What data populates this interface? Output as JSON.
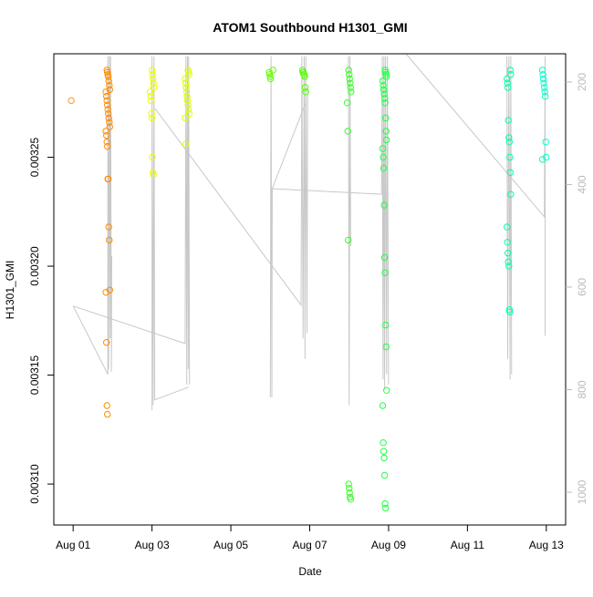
{
  "chart_data": {
    "type": "scatter",
    "title": "ATOM1 Southbound H1301_GMI",
    "xlabel": "Date",
    "ylabel": "H1301_GMI",
    "xlim_days_from_aug01": [
      -0.49,
      12.49
    ],
    "ylim": [
      0.0030812,
      0.0032975
    ],
    "y2lim_inverted": [
      145,
      1064
    ],
    "x_ticks": [
      {
        "day": 0,
        "label": "Aug 01"
      },
      {
        "day": 2,
        "label": "Aug 03"
      },
      {
        "day": 4,
        "label": "Aug 05"
      },
      {
        "day": 6,
        "label": "Aug 07"
      },
      {
        "day": 8,
        "label": "Aug 09"
      },
      {
        "day": 10,
        "label": "Aug 11"
      },
      {
        "day": 12,
        "label": "Aug 13"
      }
    ],
    "y_ticks": [
      {
        "v": 0.0031,
        "label": "0.00310"
      },
      {
        "v": 0.00315,
        "label": "0.00315"
      },
      {
        "v": 0.0032,
        "label": "0.00320"
      },
      {
        "v": 0.00325,
        "label": "0.00325"
      }
    ],
    "y2_ticks": [
      {
        "v": 200,
        "label": "200"
      },
      {
        "v": 400,
        "label": "400"
      },
      {
        "v": 600,
        "label": "600"
      },
      {
        "v": 800,
        "label": "800"
      },
      {
        "v": 1000,
        "label": "1000"
      }
    ],
    "groups": [
      {
        "day": 0.0,
        "color": "#FF9A20",
        "values": [
          0.003276
        ]
      },
      {
        "day": 0.88,
        "color": "#FF8C00",
        "values": [
          0.00329,
          0.003289,
          0.003288,
          0.003287,
          0.003285,
          0.003283,
          0.003281,
          0.00328,
          0.003278,
          0.003276,
          0.003274,
          0.003272,
          0.00327,
          0.003268,
          0.003266,
          0.003264,
          0.003262,
          0.00326,
          0.003257,
          0.003255,
          0.00324,
          0.00324,
          0.003218,
          0.003212,
          0.003189,
          0.003188,
          0.003165,
          0.003136,
          0.003132
        ]
      },
      {
        "day": 2.0,
        "color": "#E8FF00",
        "values": [
          0.00329,
          0.003288,
          0.003286,
          0.003284,
          0.003282,
          0.00328,
          0.003278,
          0.003276,
          0.00327,
          0.003268,
          0.00325,
          0.003243,
          0.003242
        ]
      },
      {
        "day": 2.89,
        "color": "#DDFF00",
        "values": [
          0.00329,
          0.003289,
          0.003288,
          0.003286,
          0.003284,
          0.003282,
          0.00328,
          0.003278,
          0.003276,
          0.003274,
          0.003272,
          0.00327,
          0.003268,
          0.003256
        ]
      },
      {
        "day": 5.02,
        "color": "#66FF00",
        "values": [
          0.00329,
          0.003289,
          0.003288,
          0.003287,
          0.003286
        ]
      },
      {
        "day": 5.85,
        "color": "#55FF00",
        "values": [
          0.00329,
          0.003289,
          0.003289,
          0.003288,
          0.003288,
          0.003287,
          0.003282,
          0.00328
        ]
      },
      {
        "day": 7.0,
        "color": "#33FF22",
        "values": [
          0.00329,
          0.003288,
          0.003286,
          0.003284,
          0.003282,
          0.00328,
          0.003275,
          0.003262,
          0.003212,
          0.0031,
          0.003098,
          0.003096,
          0.003094,
          0.003093
        ]
      },
      {
        "day": 7.9,
        "color": "#22FF44",
        "values": [
          0.00329,
          0.003289,
          0.003288,
          0.003287,
          0.003285,
          0.003283,
          0.003281,
          0.003279,
          0.003277,
          0.003275,
          0.003268,
          0.003262,
          0.003258,
          0.003254,
          0.00325,
          0.003245,
          0.003228,
          0.003204,
          0.003197,
          0.003173,
          0.003163,
          0.003143,
          0.003136,
          0.003119,
          0.003115,
          0.003112,
          0.003104,
          0.003091,
          0.003089
        ]
      },
      {
        "day": 11.05,
        "color": "#00FFAA",
        "values": [
          0.00329,
          0.003288,
          0.003286,
          0.003284,
          0.003282,
          0.003267,
          0.003259,
          0.003257,
          0.00325,
          0.003243,
          0.003233,
          0.003218,
          0.003211,
          0.003206,
          0.003202,
          0.0032,
          0.00318,
          0.003179
        ]
      },
      {
        "day": 11.95,
        "color": "#00FFCC",
        "values": [
          0.00329,
          0.003288,
          0.003286,
          0.003284,
          0.003282,
          0.00328,
          0.003278,
          0.003257,
          0.00325,
          0.003249
        ]
      }
    ],
    "depth_trace": {
      "color": "#C8C8C8",
      "paths": [
        [
          [
            0,
            637
          ],
          [
            0.88,
            770
          ],
          [
            0.88,
            150
          ],
          [
            0.9,
            760
          ],
          [
            0.92,
            150
          ],
          [
            0.94,
            700
          ],
          [
            0.95,
            150
          ],
          [
            0.97,
            765
          ],
          [
            0.98,
            540
          ]
        ],
        [
          [
            0,
            637
          ],
          [
            2.84,
            710
          ],
          [
            2.86,
            150
          ],
          [
            2.88,
            790
          ],
          [
            2.9,
            150
          ],
          [
            2.92,
            760
          ],
          [
            2.93,
            150
          ],
          [
            2.95,
            790
          ]
        ],
        [
          [
            2.0,
            840
          ],
          [
            2.0,
            150
          ],
          [
            2.03,
            830
          ],
          [
            2.05,
            150
          ],
          [
            2.07,
            820
          ],
          [
            2.93,
            795
          ]
        ],
        [
          [
            2.08,
            252
          ],
          [
            5.78,
            635
          ],
          [
            5.8,
            150
          ],
          [
            5.83,
            700
          ],
          [
            5.86,
            150
          ],
          [
            5.88,
            740
          ],
          [
            5.9,
            150
          ],
          [
            5.93,
            690
          ],
          [
            5.95,
            210
          ]
        ],
        [
          [
            5.0,
            815
          ],
          [
            5.02,
            150
          ],
          [
            5.04,
            815
          ],
          [
            5.05,
            408
          ],
          [
            7.82,
            419
          ],
          [
            7.84,
            150
          ],
          [
            7.86,
            780
          ],
          [
            7.88,
            150
          ],
          [
            7.9,
            800
          ],
          [
            7.92,
            150
          ],
          [
            7.95,
            770
          ],
          [
            7.97,
            150
          ],
          [
            8.0,
            790
          ]
        ],
        [
          [
            5.05,
            408
          ],
          [
            5.9,
            240
          ]
        ],
        [
          [
            6.98,
            150
          ],
          [
            7.0,
            830
          ],
          [
            7.02,
            150
          ],
          [
            7.04,
            520
          ]
        ],
        [
          [
            8.44,
            145
          ],
          [
            11.95,
            463
          ],
          [
            11.97,
            150
          ],
          [
            11.97,
            695
          ]
        ],
        [
          [
            11.0,
            150
          ],
          [
            11.02,
            740
          ],
          [
            11.05,
            150
          ],
          [
            11.08,
            780
          ],
          [
            11.1,
            150
          ],
          [
            11.12,
            770
          ]
        ]
      ]
    }
  }
}
